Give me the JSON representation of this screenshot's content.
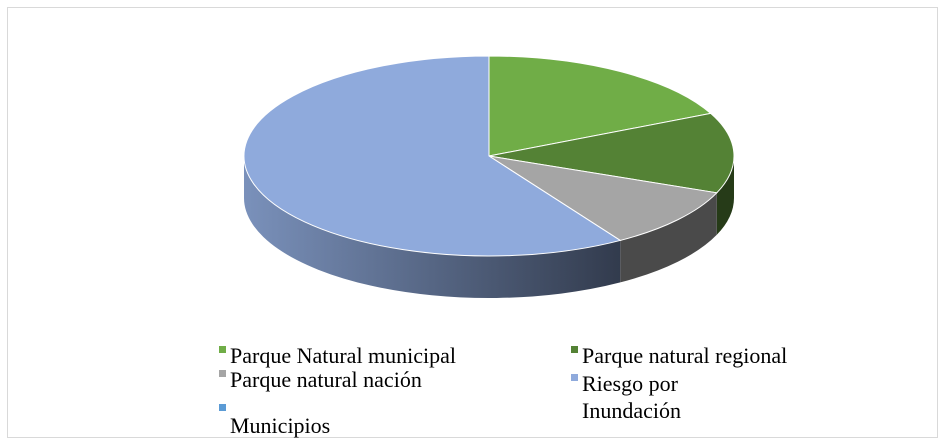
{
  "chart_data": {
    "type": "pie",
    "categories": [
      "Parque Natural municipal",
      "Parque natural regional",
      "Parque natural nación",
      "Riesgo por Inundación",
      "Municipios"
    ],
    "values": [
      18,
      13,
      10,
      59,
      0
    ],
    "colors": [
      "#70ad47",
      "#548235",
      "#a5a5a5",
      "#8faadc",
      "#5b9bd5"
    ]
  }
}
